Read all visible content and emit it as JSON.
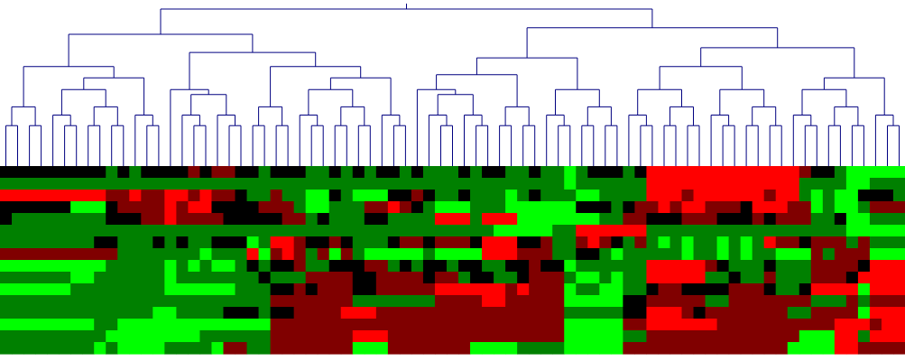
{
  "chart_data": {
    "type": "heatmap",
    "title": "",
    "xlabel": "",
    "ylabel": "",
    "n_columns": 77,
    "n_rows": 16,
    "color_scale": {
      "low": "#00ff00",
      "mid": "#000000",
      "high": "#ff0000"
    },
    "dendrogram_color": "#000080",
    "value_range": [
      -2,
      2
    ],
    "row_profiles": [
      [
        0,
        0,
        0,
        0,
        0,
        0,
        0,
        0,
        0,
        -1,
        0,
        -1,
        0,
        0,
        0,
        0,
        1,
        0,
        1,
        1,
        0,
        0,
        -1,
        0,
        0,
        0,
        -1,
        -1,
        0,
        -1,
        0,
        -1,
        0,
        0,
        -1,
        0,
        -1,
        -1,
        -1,
        0,
        -1,
        0,
        0,
        -1,
        -1,
        0,
        -1,
        -1,
        -2,
        -1,
        0,
        0,
        0,
        -1,
        0,
        2,
        2,
        2,
        2,
        2,
        2,
        2,
        2,
        2,
        2,
        2,
        2,
        2,
        1,
        0,
        0,
        -1,
        -2,
        -2,
        -2,
        -2,
        -2
      ],
      [
        -1,
        -1,
        -1,
        -1,
        -1,
        -1,
        -1,
        -1,
        -1,
        -1,
        -1,
        -1,
        -1,
        -1,
        -1,
        -1,
        -1,
        -1,
        -1,
        -1,
        -1,
        -1,
        -1,
        -1,
        -1,
        -1,
        -1,
        -1,
        -1,
        -1,
        -1,
        -1,
        -1,
        -1,
        -1,
        -1,
        -1,
        -1,
        -1,
        -1,
        -1,
        -1,
        -1,
        -1,
        -1,
        -1,
        -1,
        -1,
        -2,
        -1,
        -1,
        -1,
        -1,
        -1,
        -1,
        2,
        2,
        2,
        2,
        2,
        2,
        2,
        2,
        2,
        2,
        2,
        2,
        2,
        -1,
        -1,
        -1,
        -1,
        -2,
        -2,
        -1,
        -1,
        -1
      ],
      [
        2,
        2,
        2,
        2,
        2,
        2,
        2,
        2,
        2,
        1,
        1,
        2,
        1,
        1,
        2,
        2,
        1,
        2,
        1,
        1,
        0,
        -1,
        -1,
        1,
        -1,
        -1,
        -2,
        -2,
        0,
        -1,
        -2,
        -2,
        -2,
        0,
        0,
        1,
        0,
        -1,
        -1,
        0,
        -1,
        -1,
        -1,
        -2,
        -1,
        0,
        -1,
        -1,
        -1,
        -2,
        -2,
        -1,
        -1,
        -1,
        -1,
        2,
        2,
        2,
        1,
        2,
        2,
        2,
        2,
        2,
        2,
        1,
        2,
        2,
        -1,
        -2,
        -1,
        -2,
        -2,
        0,
        0,
        0,
        -1
      ],
      [
        0,
        0,
        0,
        0,
        0,
        0,
        -2,
        -2,
        -2,
        0,
        1,
        1,
        1,
        1,
        2,
        1,
        2,
        2,
        0,
        0,
        0,
        0,
        1,
        1,
        1,
        -1,
        -2,
        -2,
        -1,
        -1,
        -1,
        1,
        1,
        2,
        1,
        0,
        -1,
        -2,
        -2,
        -2,
        -1,
        -1,
        -1,
        -2,
        -2,
        -2,
        -2,
        -2,
        -2,
        0,
        0,
        0,
        -1,
        0,
        1,
        1,
        2,
        1,
        2,
        2,
        1,
        1,
        1,
        0,
        2,
        2,
        2,
        1,
        1,
        -2,
        -1,
        -2,
        -2,
        -1,
        1,
        1,
        1
      ],
      [
        0,
        -1,
        -1,
        -1,
        -1,
        -1,
        -1,
        -1,
        -1,
        0,
        0,
        0,
        1,
        1,
        2,
        1,
        1,
        1,
        1,
        0,
        0,
        0,
        0,
        0,
        1,
        1,
        -1,
        0,
        -1,
        -1,
        -1,
        0,
        0,
        -1,
        -1,
        -1,
        -1,
        2,
        2,
        2,
        -1,
        2,
        2,
        2,
        -2,
        -2,
        -2,
        -2,
        -2,
        -2,
        -2,
        -1,
        -1,
        1,
        1,
        0,
        0,
        0,
        1,
        1,
        1,
        0,
        0,
        0,
        1,
        0,
        1,
        1,
        1,
        -1,
        -1,
        0,
        -2,
        -2,
        -1,
        -1,
        -1
      ],
      [
        -1,
        -1,
        -1,
        -1,
        -1,
        -1,
        -1,
        -1,
        -1,
        -1,
        -1,
        -1,
        -1,
        -1,
        -1,
        -1,
        -1,
        -1,
        -1,
        -1,
        -1,
        -1,
        -1,
        -1,
        -1,
        -1,
        -1,
        -1,
        -1,
        -1,
        -1,
        -1,
        -1,
        -1,
        -1,
        -1,
        -1,
        -1,
        -1,
        -1,
        -1,
        -1,
        -2,
        -2,
        -2,
        -2,
        -2,
        -1,
        -1,
        2,
        2,
        2,
        2,
        2,
        2,
        -1,
        -1,
        -1,
        -1,
        -1,
        -1,
        -1,
        -1,
        -1,
        -1,
        -1,
        -1,
        -1,
        -1,
        -1,
        -1,
        -1,
        -2,
        -2,
        -2,
        -2,
        -2
      ],
      [
        -1,
        -1,
        -1,
        -1,
        -1,
        -1,
        -1,
        -1,
        0,
        0,
        -1,
        -1,
        -1,
        0,
        -1,
        0,
        -1,
        -1,
        0,
        0,
        0,
        -2,
        -1,
        2,
        2,
        1,
        0,
        0,
        1,
        0,
        -1,
        -1,
        -1,
        0,
        1,
        1,
        0,
        1,
        1,
        1,
        0,
        2,
        2,
        2,
        0,
        0,
        1,
        -1,
        -1,
        1,
        2,
        1,
        0,
        -1,
        1,
        -1,
        -2,
        -1,
        -2,
        -1,
        -1,
        -2,
        -1,
        -2,
        -1,
        2,
        1,
        1,
        0,
        1,
        1,
        1,
        -1,
        1,
        -1,
        -1,
        -1
      ],
      [
        1,
        1,
        1,
        1,
        1,
        1,
        1,
        1,
        1,
        1,
        -1,
        -1,
        -1,
        -1,
        -1,
        -1,
        -1,
        -2,
        -1,
        -1,
        -1,
        2,
        -2,
        1,
        2,
        1,
        -1,
        1,
        -2,
        1,
        -1,
        -2,
        -2,
        -2,
        -2,
        -2,
        -1,
        -2,
        -2,
        -2,
        -2,
        2,
        2,
        2,
        1,
        1,
        1,
        -1,
        -1,
        0,
        0,
        -1,
        -2,
        -1,
        -1,
        -1,
        -1,
        -1,
        -2,
        -1,
        -1,
        -2,
        -1,
        -2,
        -1,
        -1,
        -2,
        -2,
        -2,
        1,
        -1,
        1,
        1,
        1,
        -2,
        -2,
        -2
      ],
      [
        -2,
        -2,
        -2,
        -2,
        -2,
        -2,
        -2,
        -2,
        -2,
        -1,
        -1,
        -1,
        -1,
        -1,
        -2,
        -1,
        -2,
        -1,
        -2,
        -2,
        -1,
        0,
        -1,
        0,
        0,
        1,
        -1,
        -1,
        0,
        0,
        0,
        1,
        1,
        -1,
        0,
        -1,
        0,
        0,
        -1,
        0,
        0,
        -1,
        -1,
        0,
        0,
        1,
        0,
        0,
        -2,
        -1,
        -1,
        -1,
        -1,
        -1,
        -1,
        2,
        2,
        2,
        2,
        2,
        1,
        0,
        -1,
        -1,
        -1,
        0,
        -1,
        -1,
        -1,
        1,
        1,
        1,
        1,
        0,
        2,
        2,
        2
      ],
      [
        -1,
        -1,
        -1,
        -1,
        -1,
        -1,
        -2,
        -2,
        -1,
        -1,
        -1,
        -1,
        -1,
        -1,
        -2,
        -1,
        -1,
        -1,
        -1,
        -1,
        -1,
        -1,
        0,
        -1,
        -1,
        -1,
        1,
        1,
        1,
        1,
        0,
        0,
        1,
        1,
        1,
        1,
        0,
        1,
        1,
        -1,
        0,
        0,
        -1,
        -1,
        0,
        1,
        1,
        1,
        -1,
        -2,
        -2,
        -1,
        -2,
        -1,
        -1,
        2,
        2,
        2,
        2,
        2,
        -1,
        -1,
        0,
        -1,
        -1,
        1,
        -1,
        -1,
        -1,
        1,
        1,
        1,
        0,
        2,
        2,
        2,
        2
      ],
      [
        -2,
        -2,
        -2,
        -2,
        -2,
        -2,
        -1,
        -1,
        -1,
        -1,
        -1,
        -1,
        -1,
        -1,
        -2,
        -2,
        -2,
        -2,
        -2,
        -2,
        -1,
        -1,
        -1,
        0,
        0,
        1,
        0,
        1,
        1,
        1,
        0,
        0,
        1,
        1,
        1,
        1,
        1,
        2,
        2,
        2,
        2,
        2,
        2,
        1,
        2,
        1,
        1,
        1,
        -2,
        -1,
        -1,
        -2,
        -2,
        -1,
        -1,
        0,
        1,
        1,
        0,
        0,
        0,
        0,
        1,
        1,
        1,
        0,
        -1,
        -1,
        0,
        2,
        2,
        2,
        2,
        -2,
        2,
        2,
        2
      ],
      [
        -1,
        -1,
        -1,
        -1,
        -1,
        -1,
        -1,
        -1,
        -1,
        -1,
        -1,
        -1,
        -1,
        -1,
        -1,
        -1,
        -1,
        -1,
        -1,
        -1,
        -1,
        -1,
        -1,
        1,
        1,
        1,
        1,
        1,
        1,
        1,
        -1,
        -1,
        -1,
        -1,
        -1,
        -1,
        -1,
        1,
        1,
        1,
        1,
        2,
        2,
        1,
        1,
        1,
        1,
        1,
        -2,
        -2,
        -2,
        -2,
        -2,
        0,
        0,
        1,
        1,
        1,
        1,
        1,
        -1,
        -1,
        1,
        1,
        1,
        1,
        1,
        1,
        1,
        -1,
        -1,
        -1,
        1,
        -1,
        1,
        1,
        1
      ],
      [
        -1,
        -1,
        -1,
        -1,
        -1,
        -1,
        -1,
        -1,
        -1,
        -1,
        -1,
        -1,
        -1,
        -2,
        -2,
        -1,
        -1,
        -1,
        -1,
        0,
        0,
        0,
        -1,
        0,
        0,
        1,
        1,
        1,
        1,
        2,
        2,
        2,
        1,
        1,
        1,
        1,
        1,
        1,
        1,
        1,
        1,
        1,
        1,
        1,
        1,
        1,
        1,
        1,
        -1,
        -1,
        -1,
        -1,
        -1,
        0,
        0,
        2,
        2,
        2,
        1,
        0,
        1,
        1,
        1,
        1,
        1,
        1,
        1,
        -1,
        -1,
        1,
        1,
        1,
        1,
        -2,
        2,
        2,
        2
      ],
      [
        -2,
        -2,
        -2,
        -2,
        -2,
        -2,
        -2,
        -2,
        -1,
        -1,
        -2,
        -2,
        -2,
        -2,
        -2,
        -2,
        -2,
        -2,
        -2,
        -2,
        -2,
        -2,
        -2,
        1,
        1,
        1,
        1,
        1,
        1,
        1,
        1,
        1,
        1,
        1,
        1,
        1,
        1,
        1,
        1,
        1,
        1,
        1,
        1,
        1,
        1,
        1,
        1,
        1,
        -2,
        -2,
        -2,
        -2,
        -2,
        1,
        1,
        2,
        2,
        2,
        2,
        2,
        2,
        1,
        1,
        1,
        1,
        1,
        1,
        1,
        1,
        1,
        1,
        2,
        2,
        2,
        1,
        2,
        2
      ],
      [
        -1,
        -1,
        -1,
        -1,
        -1,
        -1,
        -1,
        -1,
        -1,
        -2,
        -2,
        -2,
        -2,
        -2,
        -2,
        -2,
        -2,
        -1,
        -1,
        -1,
        -1,
        -1,
        -1,
        1,
        1,
        1,
        1,
        1,
        1,
        1,
        2,
        2,
        2,
        1,
        1,
        1,
        1,
        1,
        1,
        1,
        1,
        1,
        1,
        1,
        1,
        1,
        1,
        1,
        -2,
        -2,
        -2,
        -2,
        -2,
        -1,
        -1,
        1,
        1,
        1,
        1,
        1,
        1,
        1,
        1,
        1,
        1,
        1,
        1,
        1,
        -2,
        -2,
        -2,
        2,
        2,
        -1,
        2,
        2,
        2
      ],
      [
        -1,
        -1,
        -1,
        -1,
        -1,
        -1,
        -1,
        -1,
        -2,
        -1,
        -2,
        -2,
        -2,
        -2,
        -1,
        -1,
        -1,
        -1,
        -2,
        1,
        1,
        -1,
        -1,
        1,
        1,
        1,
        1,
        1,
        1,
        1,
        -2,
        -2,
        -2,
        1,
        1,
        1,
        1,
        1,
        1,
        1,
        -2,
        -2,
        -2,
        -2,
        -1,
        -1,
        -1,
        -1,
        -2,
        -2,
        -2,
        -2,
        -2,
        1,
        1,
        1,
        1,
        1,
        1,
        1,
        1,
        1,
        1,
        1,
        1,
        1,
        1,
        -2,
        -2,
        -2,
        -2,
        2,
        2,
        1,
        1,
        1,
        1
      ]
    ]
  }
}
